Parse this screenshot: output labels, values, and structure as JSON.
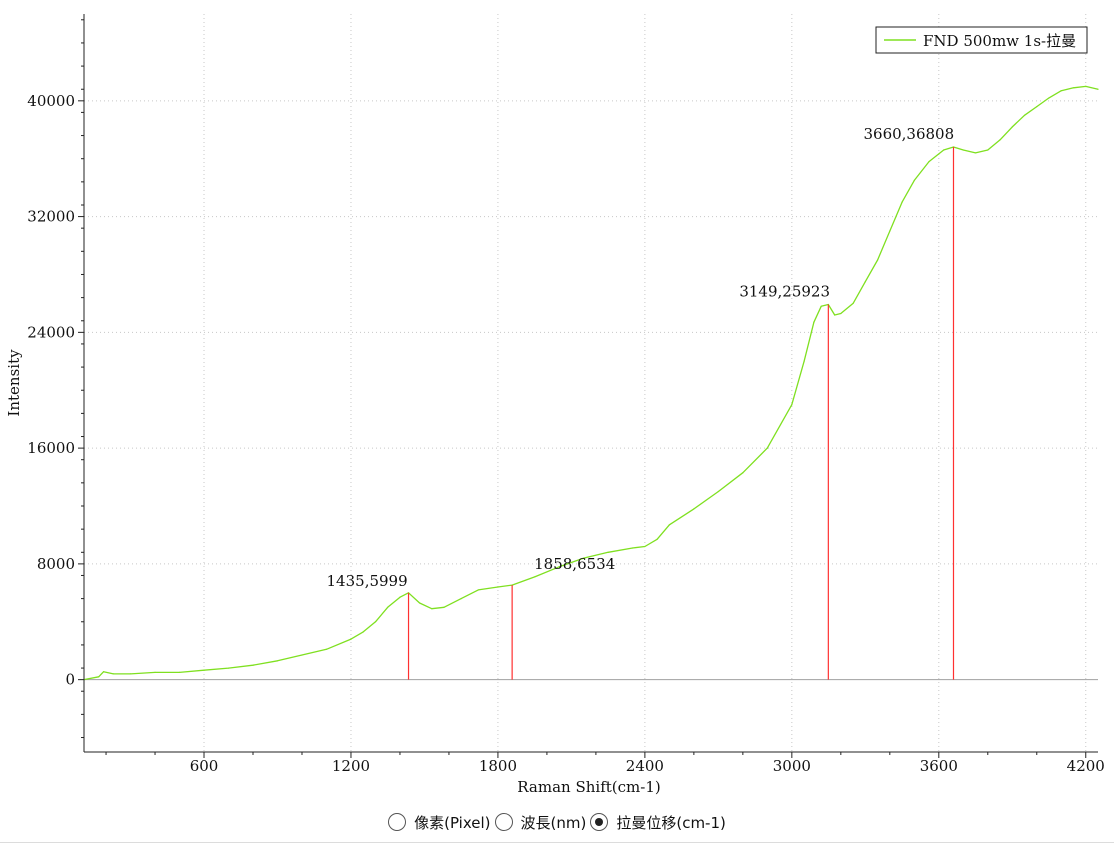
{
  "chart_data": {
    "type": "line",
    "xlabel": "Raman Shift(cm-1)",
    "ylabel": "Intensity",
    "xlim": [
      110,
      4250
    ],
    "ylim": [
      -5000,
      46000
    ],
    "x_ticks": [
      600,
      1200,
      1800,
      2400,
      3000,
      3600,
      4200
    ],
    "y_ticks": [
      0,
      8000,
      16000,
      24000,
      32000,
      40000
    ],
    "grid": true,
    "legend_position": "top-right",
    "series": [
      {
        "name": "FND 500mw 1s-拉曼",
        "color": "#7fe020",
        "x": [
          110,
          170,
          190,
          230,
          300,
          400,
          500,
          600,
          700,
          800,
          900,
          1000,
          1100,
          1200,
          1250,
          1300,
          1350,
          1400,
          1435,
          1480,
          1530,
          1580,
          1650,
          1720,
          1800,
          1858,
          1950,
          2050,
          2150,
          2250,
          2350,
          2400,
          2450,
          2500,
          2600,
          2700,
          2800,
          2900,
          3000,
          3050,
          3090,
          3120,
          3149,
          3175,
          3200,
          3250,
          3300,
          3350,
          3400,
          3450,
          3500,
          3560,
          3620,
          3660,
          3700,
          3750,
          3800,
          3850,
          3900,
          3950,
          4000,
          4050,
          4100,
          4150,
          4200,
          4250
        ],
        "y": [
          0,
          200,
          550,
          400,
          400,
          500,
          500,
          650,
          800,
          1000,
          1300,
          1700,
          2100,
          2800,
          3300,
          4000,
          5000,
          5700,
          5999,
          5300,
          4900,
          5000,
          5600,
          6200,
          6400,
          6534,
          7100,
          7800,
          8400,
          8800,
          9100,
          9200,
          9700,
          10700,
          11800,
          13000,
          14300,
          16000,
          19000,
          22000,
          24700,
          25800,
          25923,
          25200,
          25300,
          26000,
          27500,
          29000,
          31000,
          33000,
          34500,
          35800,
          36600,
          36808,
          36600,
          36400,
          36600,
          37300,
          38200,
          39000,
          39600,
          40200,
          40700,
          40900,
          41000,
          40800
        ]
      }
    ],
    "peak_markers": [
      {
        "x": 1435,
        "y": 5999,
        "label": "1435,5999"
      },
      {
        "x": 1858,
        "y": 6534,
        "label": "1858,6534"
      },
      {
        "x": 3149,
        "y": 25923,
        "label": "3149,25923"
      },
      {
        "x": 3660,
        "y": 36808,
        "label": "3660,36808"
      }
    ],
    "marker_color": "#ff3030"
  },
  "mode_selector": {
    "options": [
      {
        "label": "像素(Pixel)",
        "checked": false
      },
      {
        "label": "波長(nm)",
        "checked": false
      },
      {
        "label": "拉曼位移(cm-1)",
        "checked": true
      }
    ]
  }
}
